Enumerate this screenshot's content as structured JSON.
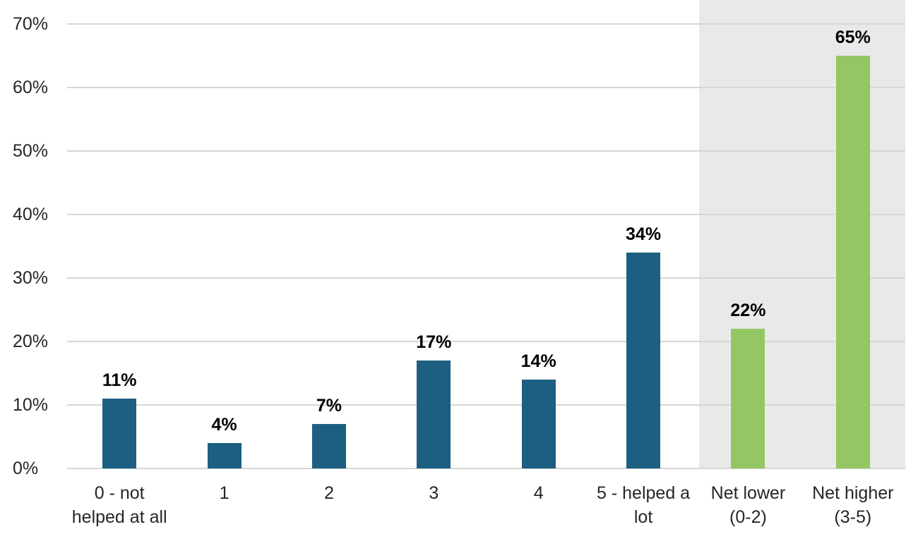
{
  "chart_data": {
    "type": "bar",
    "title": "",
    "xlabel": "",
    "ylabel": "",
    "grid": true,
    "legend": false,
    "y_axis": {
      "min": 0,
      "max": 70,
      "step": 10,
      "format": "percent",
      "ticks": [
        "0%",
        "10%",
        "20%",
        "30%",
        "40%",
        "50%",
        "60%",
        "70%"
      ]
    },
    "categories": [
      {
        "label": "0 - not helped at all",
        "lines": [
          "0 - not",
          "helped at all"
        ],
        "value": 11,
        "value_label": "11%",
        "group": "scale"
      },
      {
        "label": "1",
        "lines": [
          "1"
        ],
        "value": 4,
        "value_label": "4%",
        "group": "scale"
      },
      {
        "label": "2",
        "lines": [
          "2"
        ],
        "value": 7,
        "value_label": "7%",
        "group": "scale"
      },
      {
        "label": "3",
        "lines": [
          "3"
        ],
        "value": 17,
        "value_label": "17%",
        "group": "scale"
      },
      {
        "label": "4",
        "lines": [
          "4"
        ],
        "value": 14,
        "value_label": "14%",
        "group": "scale"
      },
      {
        "label": "5 - helped a lot",
        "lines": [
          "5 - helped a",
          "lot"
        ],
        "value": 34,
        "value_label": "34%",
        "group": "scale"
      },
      {
        "label": "Net lower (0-2)",
        "lines": [
          "Net lower",
          "(0-2)"
        ],
        "value": 22,
        "value_label": "22%",
        "group": "net"
      },
      {
        "label": "Net higher (3-5)",
        "lines": [
          "Net higher",
          "(3-5)"
        ],
        "value": 65,
        "value_label": "65%",
        "group": "net"
      }
    ],
    "highlight_region": {
      "covers": [
        "Net lower (0-2)",
        "Net higher (3-5)"
      ]
    },
    "colors": {
      "scale_bar": "#1C5F80",
      "net_bar": "#94C663",
      "highlight_bg": "#E9E9E9",
      "gridline": "#D6D6D6",
      "axis_text": "#262626",
      "value_text": "#000000",
      "background": "#FFFFFF"
    }
  }
}
